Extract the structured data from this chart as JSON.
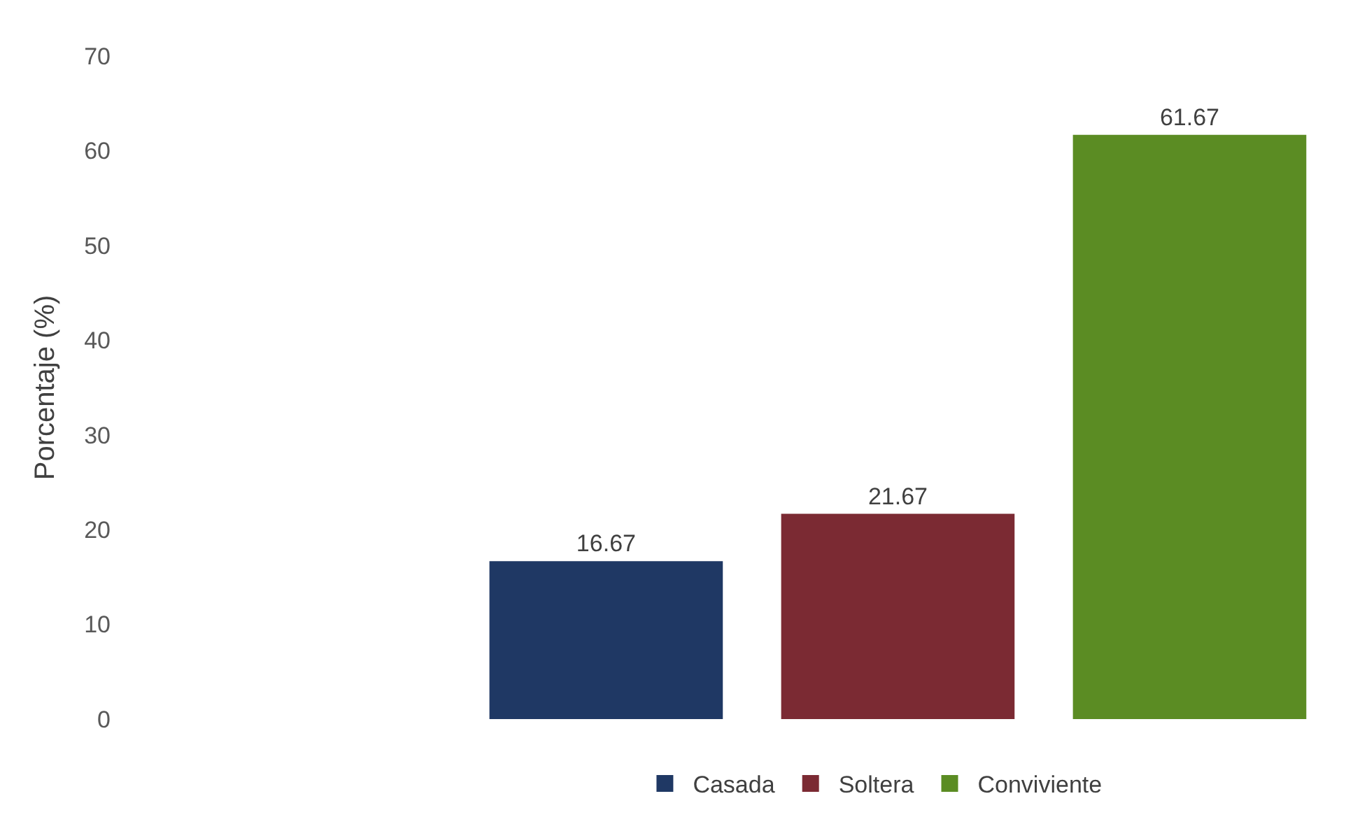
{
  "chart_data": {
    "type": "bar",
    "ylabel": "Porcentaje (%)",
    "categories": [
      null
    ],
    "series": [
      {
        "name": "Casada",
        "color": "#1f3864",
        "values": [
          16.67
        ]
      },
      {
        "name": "Soltera",
        "color": "#7b2a33",
        "values": [
          21.67
        ]
      },
      {
        "name": "Conviviente",
        "color": "#5b8c23",
        "values": [
          61.67
        ]
      }
    ],
    "ylim": [
      0,
      70
    ],
    "yticks": [
      0,
      10,
      20,
      30,
      40,
      50,
      60,
      70
    ],
    "legend": "bottom",
    "data_labels": true,
    "tick_labels": "y"
  }
}
